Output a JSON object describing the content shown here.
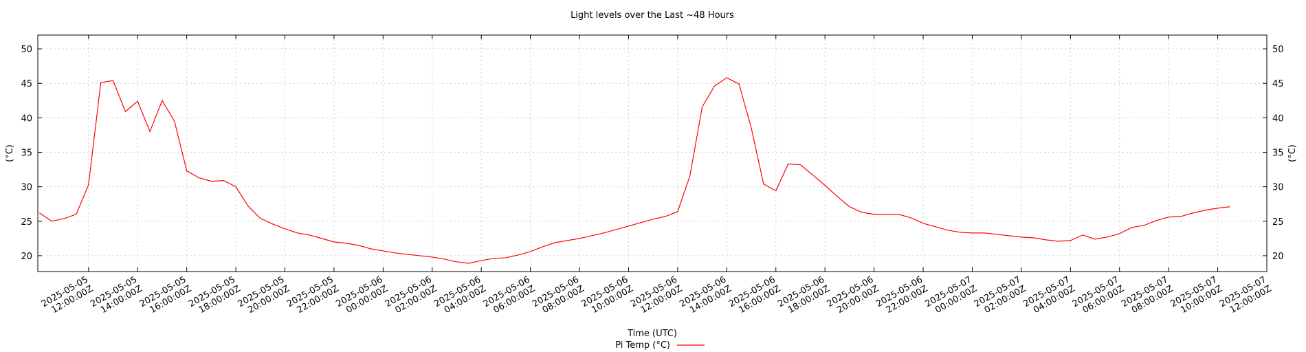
{
  "chart_data": {
    "type": "line",
    "title": "Light levels over the Last ~48 Hours",
    "x_label": "Time (UTC)",
    "y_label": "(°C)",
    "y2_label": "(°C)",
    "grid": true,
    "legend": "bottom",
    "xlim": [
      "2025-05-05T09:56:00Z",
      "2025-05-07T12:00:00Z"
    ],
    "ylim": [
      17.7,
      52
    ],
    "yticks": [
      20,
      25,
      30,
      35,
      40,
      45,
      50
    ],
    "xticks": [
      {
        "value": "2025-05-05T12:00:00Z",
        "label": "2025-05-05\n12:00:00Z"
      },
      {
        "value": "2025-05-05T14:00:00Z",
        "label": "2025-05-05\n14:00:00Z"
      },
      {
        "value": "2025-05-05T16:00:00Z",
        "label": "2025-05-05\n16:00:00Z"
      },
      {
        "value": "2025-05-05T18:00:00Z",
        "label": "2025-05-05\n18:00:00Z"
      },
      {
        "value": "2025-05-05T20:00:00Z",
        "label": "2025-05-05\n20:00:00Z"
      },
      {
        "value": "2025-05-05T22:00:00Z",
        "label": "2025-05-05\n22:00:00Z"
      },
      {
        "value": "2025-05-06T00:00:00Z",
        "label": "2025-05-06\n00:00:00Z"
      },
      {
        "value": "2025-05-06T02:00:00Z",
        "label": "2025-05-06\n02:00:00Z"
      },
      {
        "value": "2025-05-06T04:00:00Z",
        "label": "2025-05-06\n04:00:00Z"
      },
      {
        "value": "2025-05-06T06:00:00Z",
        "label": "2025-05-06\n06:00:00Z"
      },
      {
        "value": "2025-05-06T08:00:00Z",
        "label": "2025-05-06\n08:00:00Z"
      },
      {
        "value": "2025-05-06T10:00:00Z",
        "label": "2025-05-06\n10:00:00Z"
      },
      {
        "value": "2025-05-06T12:00:00Z",
        "label": "2025-05-06\n12:00:00Z"
      },
      {
        "value": "2025-05-06T14:00:00Z",
        "label": "2025-05-06\n14:00:00Z"
      },
      {
        "value": "2025-05-06T16:00:00Z",
        "label": "2025-05-06\n16:00:00Z"
      },
      {
        "value": "2025-05-06T18:00:00Z",
        "label": "2025-05-06\n18:00:00Z"
      },
      {
        "value": "2025-05-06T20:00:00Z",
        "label": "2025-05-06\n20:00:00Z"
      },
      {
        "value": "2025-05-06T22:00:00Z",
        "label": "2025-05-06\n22:00:00Z"
      },
      {
        "value": "2025-05-07T00:00:00Z",
        "label": "2025-05-07\n00:00:00Z"
      },
      {
        "value": "2025-05-07T02:00:00Z",
        "label": "2025-05-07\n02:00:00Z"
      },
      {
        "value": "2025-05-07T04:00:00Z",
        "label": "2025-05-07\n04:00:00Z"
      },
      {
        "value": "2025-05-07T06:00:00Z",
        "label": "2025-05-07\n06:00:00Z"
      },
      {
        "value": "2025-05-07T08:00:00Z",
        "label": "2025-05-07\n08:00:00Z"
      },
      {
        "value": "2025-05-07T10:00:00Z",
        "label": "2025-05-07\n10:00:00Z"
      },
      {
        "value": "2025-05-07T12:00:00Z",
        "label": "2025-05-07\n12:00:00Z"
      }
    ],
    "x": [
      "2025-05-05T10:00:00Z",
      "2025-05-05T10:30:00Z",
      "2025-05-05T11:00:00Z",
      "2025-05-05T11:30:00Z",
      "2025-05-05T12:00:00Z",
      "2025-05-05T12:30:00Z",
      "2025-05-05T13:00:00Z",
      "2025-05-05T13:30:00Z",
      "2025-05-05T14:00:00Z",
      "2025-05-05T14:30:00Z",
      "2025-05-05T15:00:00Z",
      "2025-05-05T15:30:00Z",
      "2025-05-05T16:00:00Z",
      "2025-05-05T16:30:00Z",
      "2025-05-05T17:00:00Z",
      "2025-05-05T17:30:00Z",
      "2025-05-05T18:00:00Z",
      "2025-05-05T18:30:00Z",
      "2025-05-05T19:00:00Z",
      "2025-05-05T19:30:00Z",
      "2025-05-05T20:00:00Z",
      "2025-05-05T20:30:00Z",
      "2025-05-05T21:00:00Z",
      "2025-05-05T21:30:00Z",
      "2025-05-05T22:00:00Z",
      "2025-05-05T22:30:00Z",
      "2025-05-05T23:00:00Z",
      "2025-05-05T23:30:00Z",
      "2025-05-06T00:00:00Z",
      "2025-05-06T00:30:00Z",
      "2025-05-06T01:00:00Z",
      "2025-05-06T01:30:00Z",
      "2025-05-06T02:00:00Z",
      "2025-05-06T02:30:00Z",
      "2025-05-06T03:00:00Z",
      "2025-05-06T03:30:00Z",
      "2025-05-06T04:00:00Z",
      "2025-05-06T04:30:00Z",
      "2025-05-06T05:00:00Z",
      "2025-05-06T05:30:00Z",
      "2025-05-06T06:00:00Z",
      "2025-05-06T06:30:00Z",
      "2025-05-06T07:00:00Z",
      "2025-05-06T07:30:00Z",
      "2025-05-06T08:00:00Z",
      "2025-05-06T08:30:00Z",
      "2025-05-06T09:00:00Z",
      "2025-05-06T09:30:00Z",
      "2025-05-06T10:00:00Z",
      "2025-05-06T10:30:00Z",
      "2025-05-06T11:00:00Z",
      "2025-05-06T11:30:00Z",
      "2025-05-06T12:00:00Z",
      "2025-05-06T12:30:00Z",
      "2025-05-06T13:00:00Z",
      "2025-05-06T13:30:00Z",
      "2025-05-06T14:00:00Z",
      "2025-05-06T14:30:00Z",
      "2025-05-06T15:00:00Z",
      "2025-05-06T15:30:00Z",
      "2025-05-06T16:00:00Z",
      "2025-05-06T16:30:00Z",
      "2025-05-06T17:00:00Z",
      "2025-05-06T17:30:00Z",
      "2025-05-06T18:00:00Z",
      "2025-05-06T18:30:00Z",
      "2025-05-06T19:00:00Z",
      "2025-05-06T19:30:00Z",
      "2025-05-06T20:00:00Z",
      "2025-05-06T20:30:00Z",
      "2025-05-06T21:00:00Z",
      "2025-05-06T21:30:00Z",
      "2025-05-06T22:00:00Z",
      "2025-05-06T22:30:00Z",
      "2025-05-06T23:00:00Z",
      "2025-05-06T23:30:00Z",
      "2025-05-07T00:00:00Z",
      "2025-05-07T00:30:00Z",
      "2025-05-07T01:00:00Z",
      "2025-05-07T01:30:00Z",
      "2025-05-07T02:00:00Z",
      "2025-05-07T02:30:00Z",
      "2025-05-07T03:00:00Z",
      "2025-05-07T03:30:00Z",
      "2025-05-07T04:00:00Z",
      "2025-05-07T04:30:00Z",
      "2025-05-07T05:00:00Z",
      "2025-05-07T05:30:00Z",
      "2025-05-07T06:00:00Z",
      "2025-05-07T06:30:00Z",
      "2025-05-07T07:00:00Z",
      "2025-05-07T07:30:00Z",
      "2025-05-07T08:00:00Z",
      "2025-05-07T08:30:00Z",
      "2025-05-07T09:00:00Z",
      "2025-05-07T09:30:00Z",
      "2025-05-07T10:00:00Z",
      "2025-05-07T10:30:00Z"
    ],
    "series": [
      {
        "name": "Pi Temp (°C)",
        "color": "#ff0000",
        "values": [
          26.2,
          25.0,
          25.4,
          26.0,
          30.3,
          45.1,
          45.4,
          40.9,
          42.4,
          38.0,
          42.5,
          39.5,
          32.3,
          31.3,
          30.8,
          30.9,
          30.0,
          27.2,
          25.4,
          24.6,
          23.9,
          23.3,
          23.0,
          22.5,
          22.0,
          21.8,
          21.5,
          21.0,
          20.7,
          20.4,
          20.2,
          20.0,
          19.8,
          19.5,
          19.1,
          18.9,
          19.3,
          19.6,
          19.7,
          20.1,
          20.6,
          21.3,
          21.9,
          22.2,
          22.5,
          22.9,
          23.3,
          23.8,
          24.3,
          24.8,
          25.3,
          25.7,
          26.4,
          31.6,
          41.6,
          44.6,
          45.8,
          44.9,
          38.5,
          30.4,
          29.4,
          33.3,
          33.2,
          31.7,
          30.2,
          28.6,
          27.1,
          26.3,
          26.0,
          26.0,
          26.0,
          25.5,
          24.7,
          24.2,
          23.7,
          23.4,
          23.3,
          23.3,
          23.1,
          22.9,
          22.7,
          22.6,
          22.3,
          22.1,
          22.2,
          23.0,
          22.4,
          22.7,
          23.2,
          24.1,
          24.4,
          25.1,
          25.6,
          25.7,
          26.2,
          26.6,
          26.9,
          27.1
        ]
      }
    ]
  }
}
